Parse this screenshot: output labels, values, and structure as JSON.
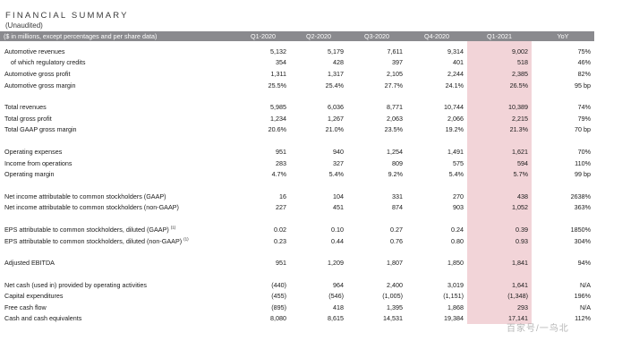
{
  "title": "FINANCIAL SUMMARY",
  "subtitle": "(Unaudited)",
  "header": {
    "label": "($ in millions, except percentages and per share data)",
    "columns": [
      "Q1-2020",
      "Q2-2020",
      "Q3-2020",
      "Q4-2020",
      "Q1-2021",
      "YoY"
    ]
  },
  "sections": [
    {
      "rows": [
        {
          "label": "Automotive revenues",
          "values": [
            "5,132",
            "5,179",
            "7,611",
            "9,314",
            "9,002",
            "75%"
          ]
        },
        {
          "label": "of which regulatory credits",
          "indent": true,
          "values": [
            "354",
            "428",
            "397",
            "401",
            "518",
            "46%"
          ]
        },
        {
          "label": "Automotive gross profit",
          "values": [
            "1,311",
            "1,317",
            "2,105",
            "2,244",
            "2,385",
            "82%"
          ]
        },
        {
          "label": "Automotive gross margin",
          "values": [
            "25.5%",
            "25.4%",
            "27.7%",
            "24.1%",
            "26.5%",
            "95 bp"
          ]
        }
      ]
    },
    {
      "rows": [
        {
          "label": "Total revenues",
          "values": [
            "5,985",
            "6,036",
            "8,771",
            "10,744",
            "10,389",
            "74%"
          ]
        },
        {
          "label": "Total gross profit",
          "values": [
            "1,234",
            "1,267",
            "2,063",
            "2,066",
            "2,215",
            "79%"
          ]
        },
        {
          "label": "Total GAAP gross margin",
          "values": [
            "20.6%",
            "21.0%",
            "23.5%",
            "19.2%",
            "21.3%",
            "70 bp"
          ]
        }
      ]
    },
    {
      "rows": [
        {
          "label": "Operating expenses",
          "values": [
            "951",
            "940",
            "1,254",
            "1,491",
            "1,621",
            "70%"
          ]
        },
        {
          "label": "Income from operations",
          "values": [
            "283",
            "327",
            "809",
            "575",
            "594",
            "110%"
          ]
        },
        {
          "label": "Operating margin",
          "values": [
            "4.7%",
            "5.4%",
            "9.2%",
            "5.4%",
            "5.7%",
            "99 bp"
          ]
        }
      ]
    },
    {
      "rows": [
        {
          "label": "Net income attributable to common stockholders (GAAP)",
          "values": [
            "16",
            "104",
            "331",
            "270",
            "438",
            "2638%"
          ]
        },
        {
          "label": "Net income attributable to common stockholders (non-GAAP)",
          "values": [
            "227",
            "451",
            "874",
            "903",
            "1,052",
            "363%"
          ]
        }
      ]
    },
    {
      "rows": [
        {
          "label": "EPS attributable to common stockholders, diluted (GAAP)",
          "note": "(1)",
          "values": [
            "0.02",
            "0.10",
            "0.27",
            "0.24",
            "0.39",
            "1850%"
          ]
        },
        {
          "label": "EPS attributable to common stockholders, diluted (non-GAAP)",
          "note": "(1)",
          "values": [
            "0.23",
            "0.44",
            "0.76",
            "0.80",
            "0.93",
            "304%"
          ]
        }
      ]
    },
    {
      "rows": [
        {
          "label": "Adjusted EBITDA",
          "values": [
            "951",
            "1,209",
            "1,807",
            "1,850",
            "1,841",
            "94%"
          ]
        }
      ]
    },
    {
      "rows": [
        {
          "label": "Net cash (used in) provided by operating activities",
          "values": [
            "(440)",
            "964",
            "2,400",
            "3,019",
            "1,641",
            "N/A"
          ]
        },
        {
          "label": "Capital expenditures",
          "values": [
            "(455)",
            "(546)",
            "(1,005)",
            "(1,151)",
            "(1,348)",
            "196%"
          ]
        },
        {
          "label": "Free cash flow",
          "values": [
            "(895)",
            "418",
            "1,395",
            "1,868",
            "293",
            "N/A"
          ]
        },
        {
          "label": "Cash and cash equivalents",
          "values": [
            "8,080",
            "8,615",
            "14,531",
            "19,384",
            "17,141",
            "112%"
          ]
        }
      ]
    }
  ],
  "watermark": "百家号/一鸟北"
}
